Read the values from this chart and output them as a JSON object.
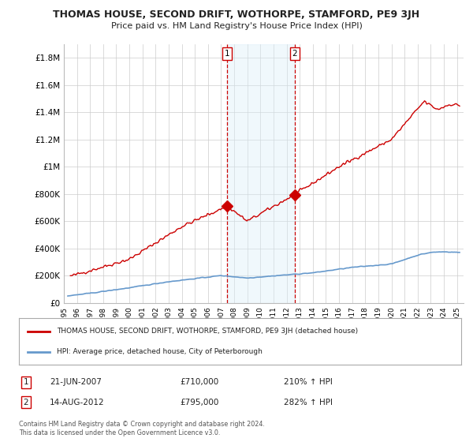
{
  "title": "THOMAS HOUSE, SECOND DRIFT, WOTHORPE, STAMFORD, PE9 3JH",
  "subtitle": "Price paid vs. HM Land Registry's House Price Index (HPI)",
  "x_start_year": 1995.3,
  "x_end_year": 2025.5,
  "ylim": [
    0,
    1900000
  ],
  "yticks": [
    0,
    200000,
    400000,
    600000,
    800000,
    1000000,
    1200000,
    1400000,
    1600000,
    1800000
  ],
  "ytick_labels": [
    "£0",
    "£200K",
    "£400K",
    "£600K",
    "£800K",
    "£1M",
    "£1.2M",
    "£1.4M",
    "£1.6M",
    "£1.8M"
  ],
  "point1": {
    "date_num": 2007.47,
    "price": 710000,
    "label": "1",
    "date_str": "21-JUN-2007",
    "pct": "210% ↑ HPI"
  },
  "point2": {
    "date_num": 2012.62,
    "price": 795000,
    "label": "2",
    "date_str": "14-AUG-2012",
    "pct": "282% ↑ HPI"
  },
  "property_line_color": "#cc0000",
  "hpi_line_color": "#6699cc",
  "shade_color": "#daeef8",
  "legend_property": "THOMAS HOUSE, SECOND DRIFT, WOTHORPE, STAMFORD, PE9 3JH (detached house)",
  "legend_hpi": "HPI: Average price, detached house, City of Peterborough",
  "annotation1_text": "21-JUN-2007",
  "annotation2_text": "14-AUG-2012",
  "price1_text": "£710,000",
  "price2_text": "£795,000",
  "pct1_text": "210% ↑ HPI",
  "pct2_text": "282% ↑ HPI",
  "footer": "Contains HM Land Registry data © Crown copyright and database right 2024.\nThis data is licensed under the Open Government Licence v3.0.",
  "background_color": "#ffffff",
  "grid_color": "#cccccc"
}
